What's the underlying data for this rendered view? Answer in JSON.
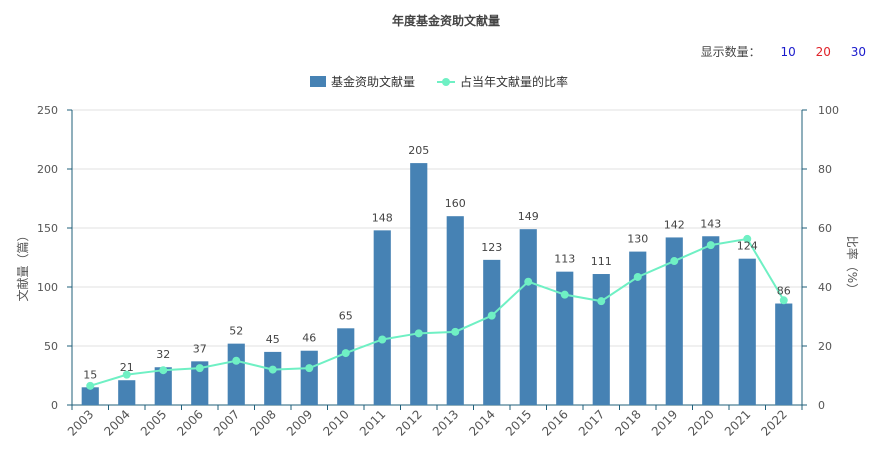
{
  "title": "年度基金资助文献量",
  "display_count": {
    "label": "显示数量：",
    "options": [
      {
        "label": "10",
        "color": "#1a1acc"
      },
      {
        "label": "20",
        "color": "#e0232a"
      },
      {
        "label": "30",
        "color": "#1a1acc"
      }
    ]
  },
  "chart_data": {
    "type": "bar",
    "categories": [
      "2003",
      "2004",
      "2005",
      "2006",
      "2007",
      "2008",
      "2009",
      "2010",
      "2011",
      "2012",
      "2013",
      "2014",
      "2015",
      "2016",
      "2017",
      "2018",
      "2019",
      "2020",
      "2021",
      "2022"
    ],
    "series": [
      {
        "name": "基金资助文献量",
        "type": "bar",
        "axis": "left",
        "color": "#4682b4",
        "values": [
          15,
          21,
          32,
          37,
          52,
          45,
          46,
          65,
          148,
          205,
          160,
          123,
          149,
          113,
          111,
          130,
          142,
          143,
          124,
          86
        ]
      },
      {
        "name": "占当年文献量的比率",
        "type": "line",
        "axis": "right",
        "color": "#6ff0c4",
        "values": [
          6.5,
          10.3,
          11.8,
          12.5,
          15,
          12,
          12.5,
          17.6,
          22.2,
          24.3,
          24.8,
          30.3,
          41.8,
          37.4,
          35.2,
          43.4,
          48.8,
          54.2,
          56.3,
          35.5
        ]
      }
    ],
    "ylabel": "文献量（篇）",
    "y2label": "比率（%）",
    "ylim": [
      0,
      250
    ],
    "yticks": [
      0,
      50,
      100,
      150,
      200,
      250
    ],
    "y2lim": [
      0,
      100
    ],
    "y2ticks": [
      0,
      20,
      40,
      60,
      80,
      100
    ],
    "grid": true,
    "legend_position": "top-center"
  }
}
